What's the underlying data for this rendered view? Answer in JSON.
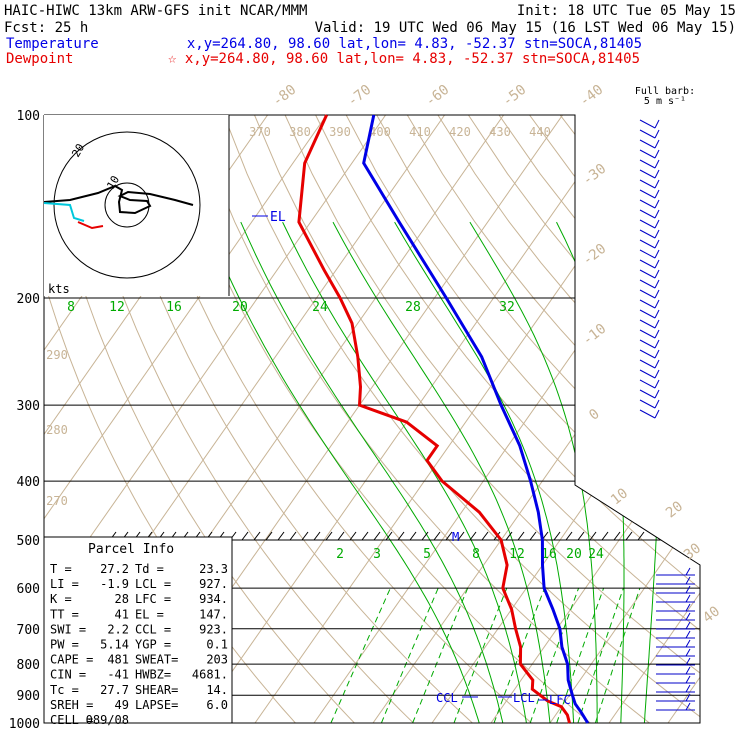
{
  "header": {
    "title": "HAIC-HIWC 13km ARW-GFS init   NCAR/MMM",
    "init": "Init: 18 UTC Tue 05 May 15",
    "fcst": "Fcst:   25 h",
    "valid": "Valid: 19 UTC Wed 06 May 15 (16 LST Wed 06 May 15)",
    "temperature_label": "Temperature",
    "temperature_info": "x,y=264.80, 98.60   lat,lon=  4.83, -52.37   stn=SOCA,81405",
    "dewpoint_label": "Dewpoint",
    "dewpoint_info": "☆ x,y=264.80, 98.60   lat,lon=  4.83, -52.37   stn=SOCA,81405"
  },
  "barb_key": {
    "line1": "Full barb:",
    "line2": "5 m s⁻¹"
  },
  "hodograph": {
    "unit": "kts",
    "ring_labels": [
      "10",
      "20"
    ]
  },
  "parcel": {
    "title": "Parcel Info",
    "rows": [
      [
        "T   =",
        "27.2",
        "Td  =",
        "23.3"
      ],
      [
        "LI  =",
        "-1.9",
        "LCL =",
        "927."
      ],
      [
        "K   =",
        "28",
        "LFC =",
        "934."
      ],
      [
        "TT  =",
        "41",
        "EL  =",
        "147."
      ],
      [
        "SWI =",
        "2.2",
        "CCL =",
        "923."
      ],
      [
        "PW  =",
        "5.14",
        "YGP =",
        "0.1"
      ],
      [
        "CAPE =",
        "481",
        "SWEAT=",
        "203"
      ],
      [
        "CIN  =",
        "-41",
        "HWBZ=",
        "4681."
      ],
      [
        "Tc  =",
        "27.7",
        "SHEAR=",
        "14."
      ],
      [
        "SREH =",
        "49",
        "LAPSE=",
        "6.0"
      ],
      [
        "CELL =",
        "089/08",
        "",
        ""
      ]
    ]
  },
  "markers": {
    "el": "EL",
    "m": "M",
    "ccl": "CCL",
    "lcl": "LCL",
    "lfc": "LFC"
  },
  "colors": {
    "temperature": "#0000e6",
    "dewpoint": "#e60000",
    "isotherm": "#c8b496",
    "mixing": "#00aa00",
    "grid": "#000000"
  },
  "chart_data": {
    "type": "line",
    "subtype": "skew-T log-P sounding",
    "y_axis": {
      "scale": "log",
      "reversed": true,
      "range_hPa": [
        1000,
        100
      ],
      "ticks": [
        100,
        200,
        300,
        400,
        500,
        600,
        700,
        800,
        900,
        1000
      ]
    },
    "isotherm_labels": [
      "-80",
      "-70",
      "-60",
      "-50",
      "-40",
      "-30",
      "-20",
      "-10",
      "0",
      "10",
      "20",
      "30",
      "40"
    ],
    "theta_labels": [
      "370",
      "380",
      "390",
      "400",
      "410",
      "420",
      "430",
      "440"
    ],
    "theta_left_labels": [
      "290",
      "280",
      "270"
    ],
    "mixing_ratio_labels_top": [
      "8",
      "12",
      "16",
      "20",
      "24",
      "28",
      "32"
    ],
    "mixing_ratio_labels_low": [
      "2",
      "3",
      "5",
      "8",
      "12",
      "16",
      "20",
      "24"
    ],
    "series": [
      {
        "name": "Temperature",
        "p": [
          1000,
          960,
          930,
          900,
          850,
          800,
          750,
          700,
          650,
          600,
          550,
          500,
          450,
          400,
          350,
          300,
          250,
          200,
          150,
          120,
          100
        ],
        "t": [
          26.4,
          24,
          22,
          20.5,
          18,
          16,
          13,
          10.5,
          7,
          3,
          0,
          -3,
          -7,
          -12,
          -18,
          -26,
          -35,
          -48,
          -65,
          -78,
          -82
        ]
      },
      {
        "name": "Dewpoint",
        "p": [
          1000,
          970,
          940,
          920,
          880,
          850,
          800,
          750,
          700,
          650,
          600,
          550,
          500,
          450,
          400,
          370,
          350,
          320,
          300,
          280,
          250,
          220,
          200,
          180,
          150,
          120,
          100
        ],
        "t": [
          23.3,
          22,
          20,
          17,
          13,
          12,
          8,
          6,
          3,
          0,
          -4,
          -6,
          -10,
          -17,
          -27,
          -32,
          -32,
          -40,
          -50,
          -52,
          -56,
          -61,
          -66,
          -72,
          -82,
          -88,
          -90
        ]
      }
    ]
  }
}
